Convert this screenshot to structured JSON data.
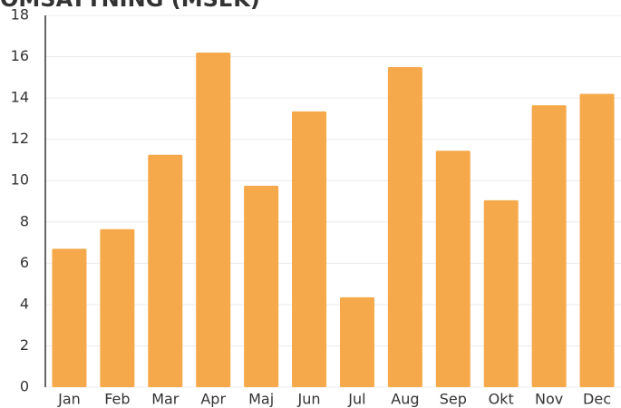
{
  "chart_data": {
    "type": "bar",
    "title": "OMSÄTTNING (MSEK)",
    "categories": [
      "Jan",
      "Feb",
      "Mar",
      "Apr",
      "Maj",
      "Jun",
      "Jul",
      "Aug",
      "Sep",
      "Okt",
      "Nov",
      "Dec"
    ],
    "values": [
      6.7,
      7.65,
      11.25,
      16.2,
      9.75,
      13.35,
      4.35,
      15.5,
      11.45,
      9.05,
      13.65,
      14.2
    ],
    "color": "#f5a94a",
    "ylim": [
      0,
      18
    ],
    "yticks": [
      0,
      2,
      4,
      6,
      8,
      10,
      12,
      14,
      16,
      18
    ],
    "grid": true
  }
}
